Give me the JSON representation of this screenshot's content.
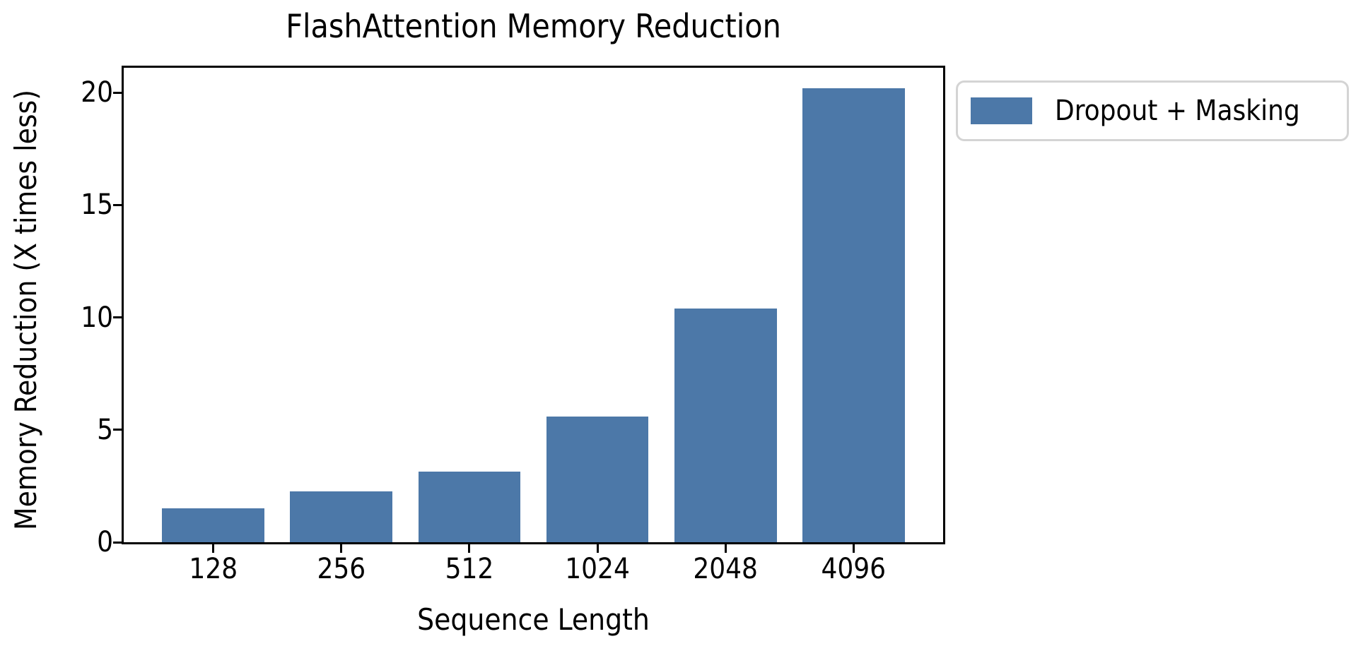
{
  "title": "FlashAttention Memory Reduction",
  "axes": {
    "xlabel": "Sequence Length",
    "ylabel": "Memory Reduction (X times less)",
    "ytick_labels": [
      "0",
      "5",
      "10",
      "15",
      "20"
    ],
    "xtick_labels": [
      "128",
      "256",
      "512",
      "1024",
      "2048",
      "4096"
    ]
  },
  "legend": {
    "position": "outside-upper-right",
    "items": [
      {
        "label": "Dropout + Masking",
        "color": "#4C78A8",
        "swatch": "bar-swatch"
      }
    ]
  },
  "colors": {
    "bar": "#4C78A8",
    "spine": "#000000",
    "background": "#ffffff",
    "legend_border": "#d4d4d4"
  },
  "chart_data": {
    "type": "bar",
    "title": "FlashAttention Memory Reduction",
    "xlabel": "Sequence Length",
    "ylabel": "Memory Reduction (X times less)",
    "categories": [
      "128",
      "256",
      "512",
      "1024",
      "2048",
      "4096"
    ],
    "series": [
      {
        "name": "Dropout + Masking",
        "color": "#4C78A8",
        "values": [
          1.5,
          2.25,
          3.15,
          5.6,
          10.4,
          20.2
        ]
      }
    ],
    "yticks": [
      0,
      5,
      10,
      15,
      20
    ],
    "ylim": [
      0,
      21.1
    ],
    "grid": false,
    "legend_position": "outside-upper-right",
    "bar_width_fraction": 0.8
  }
}
